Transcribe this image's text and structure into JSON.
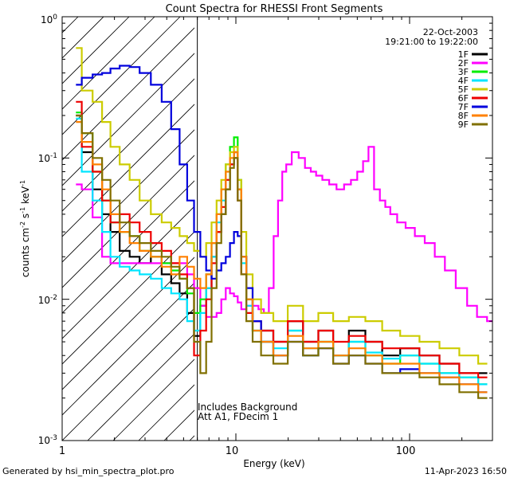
{
  "chart_data": {
    "type": "line",
    "title": "Count Spectra for RHESSI Front Segments",
    "xlabel": "Energy (keV)",
    "ylabel_main": "counts cm",
    "ylabel_sup1": "-2",
    "ylabel_mid": " s",
    "ylabel_sup2": "-1",
    "ylabel_mid2": " keV",
    "ylabel_sup3": "-1",
    "xscale": "log",
    "yscale": "log",
    "xlim": [
      1.0,
      300.0
    ],
    "ylim": [
      0.001,
      1.0
    ],
    "xticks_major": [
      {
        "value": 1,
        "label": "1"
      },
      {
        "value": 10,
        "label": "10"
      },
      {
        "value": 100,
        "label": "100"
      }
    ],
    "yticks_major": [
      {
        "value": 0.001,
        "base": "10",
        "exp": "-3"
      },
      {
        "value": 0.01,
        "base": "10",
        "exp": "-2"
      },
      {
        "value": 0.1,
        "base": "10",
        "exp": "-1"
      },
      {
        "value": 1,
        "base": "10",
        "exp": "0"
      }
    ],
    "date_label": "22-Oct-2003",
    "time_range": "19:21:00 to 19:22:00",
    "annotation_lines": [
      "Includes Background",
      "Att A1, FDecim 1"
    ],
    "footer_left": "Generated by hsi_min_spectra_plot.pro",
    "footer_right": "11-Apr-2023 16:50",
    "hatch_cutoff_kev": 6.0,
    "legend_position": "top-right",
    "series": [
      {
        "name": "1F",
        "color": "#000000",
        "energy": [
          1.2,
          1.4,
          1.6,
          1.8,
          2.0,
          2.3,
          2.6,
          3.0,
          3.5,
          4.0,
          4.5,
          5.0,
          5.5,
          6.0,
          6.5,
          7.0,
          7.5,
          8.0,
          8.5,
          9.0,
          9.5,
          10.0,
          10.5,
          11.0,
          12.0,
          13.0,
          15.0,
          18.0,
          22.0,
          27.0,
          33.0,
          40.0,
          50.0,
          62.0,
          78.0,
          100.0,
          130.0,
          170.0,
          220.0,
          280.0
        ],
        "counts": [
          0.2,
          0.11,
          0.06,
          0.04,
          0.03,
          0.022,
          0.02,
          0.018,
          0.02,
          0.015,
          0.013,
          0.011,
          0.008,
          0.0055,
          0.009,
          0.012,
          0.02,
          0.03,
          0.04,
          0.06,
          0.09,
          0.11,
          0.06,
          0.02,
          0.01,
          0.007,
          0.006,
          0.005,
          0.007,
          0.005,
          0.006,
          0.004,
          0.006,
          0.005,
          0.004,
          0.0045,
          0.004,
          0.0035,
          0.003,
          0.003
        ]
      },
      {
        "name": "2F",
        "color": "#ff00ff",
        "energy": [
          1.2,
          1.4,
          1.6,
          1.8,
          2.0,
          2.3,
          2.6,
          3.0,
          3.5,
          4.0,
          4.5,
          5.0,
          5.5,
          6.0,
          6.5,
          7.0,
          7.5,
          8.0,
          8.5,
          9.0,
          9.5,
          10.0,
          10.5,
          11.0,
          12.0,
          13.0,
          14.0,
          15.0,
          16.0,
          17.0,
          18.0,
          19.0,
          20.0,
          22.0,
          24.0,
          26.0,
          28.0,
          30.0,
          33.0,
          36.0,
          40.0,
          44.0,
          48.0,
          52.0,
          56.0,
          60.0,
          65.0,
          70.0,
          75.0,
          80.0,
          90.0,
          100.0,
          115.0,
          130.0,
          150.0,
          170.0,
          200.0,
          230.0,
          260.0,
          300.0
        ],
        "counts": [
          0.065,
          0.06,
          0.038,
          0.02,
          0.018,
          0.018,
          0.018,
          0.018,
          0.018,
          0.018,
          0.018,
          0.018,
          0.015,
          0.012,
          0.009,
          0.0075,
          0.0075,
          0.008,
          0.01,
          0.012,
          0.011,
          0.0105,
          0.0095,
          0.0085,
          0.009,
          0.009,
          0.0085,
          0.008,
          0.012,
          0.028,
          0.05,
          0.08,
          0.09,
          0.11,
          0.1,
          0.085,
          0.08,
          0.075,
          0.07,
          0.065,
          0.06,
          0.065,
          0.07,
          0.08,
          0.095,
          0.12,
          0.06,
          0.05,
          0.045,
          0.04,
          0.035,
          0.032,
          0.028,
          0.025,
          0.02,
          0.016,
          0.012,
          0.009,
          0.0075,
          0.007
        ]
      },
      {
        "name": "3F",
        "color": "#00ee00",
        "energy": [
          1.2,
          1.4,
          1.6,
          1.8,
          2.0,
          2.3,
          2.6,
          3.0,
          3.5,
          4.0,
          4.5,
          5.0,
          5.5,
          6.0,
          6.5,
          7.0,
          7.5,
          8.0,
          8.5,
          9.0,
          9.5,
          10.0,
          10.5,
          11.0,
          12.0,
          13.0,
          15.0,
          18.0,
          22.0,
          27.0,
          33.0,
          40.0,
          50.0,
          62.0,
          78.0,
          100.0,
          130.0,
          170.0,
          220.0,
          280.0
        ],
        "counts": [
          0.21,
          0.15,
          0.08,
          0.05,
          0.035,
          0.03,
          0.028,
          0.022,
          0.02,
          0.018,
          0.016,
          0.014,
          0.011,
          0.008,
          0.01,
          0.015,
          0.025,
          0.04,
          0.06,
          0.09,
          0.12,
          0.14,
          0.07,
          0.02,
          0.01,
          0.006,
          0.005,
          0.004,
          0.006,
          0.004,
          0.005,
          0.004,
          0.005,
          0.004,
          0.0035,
          0.004,
          0.0035,
          0.003,
          0.0028,
          0.0025
        ]
      },
      {
        "name": "4F",
        "color": "#00e5ff",
        "energy": [
          1.2,
          1.4,
          1.6,
          1.8,
          2.0,
          2.3,
          2.6,
          3.0,
          3.5,
          4.0,
          4.5,
          5.0,
          5.5,
          6.0,
          6.5,
          7.0,
          7.5,
          8.0,
          8.5,
          9.0,
          9.5,
          10.0,
          10.5,
          11.0,
          12.0,
          13.0,
          15.0,
          18.0,
          22.0,
          27.0,
          33.0,
          40.0,
          50.0,
          62.0,
          78.0,
          100.0,
          130.0,
          170.0,
          220.0,
          280.0
        ],
        "counts": [
          0.19,
          0.08,
          0.05,
          0.03,
          0.02,
          0.017,
          0.016,
          0.015,
          0.014,
          0.012,
          0.011,
          0.01,
          0.007,
          0.006,
          0.008,
          0.012,
          0.02,
          0.035,
          0.05,
          0.07,
          0.09,
          0.1,
          0.05,
          0.018,
          0.009,
          0.006,
          0.005,
          0.0045,
          0.006,
          0.0045,
          0.005,
          0.004,
          0.005,
          0.0042,
          0.0038,
          0.004,
          0.0035,
          0.003,
          0.0028,
          0.0025
        ]
      },
      {
        "name": "5F",
        "color": "#cccc00",
        "energy": [
          1.2,
          1.4,
          1.6,
          1.8,
          2.0,
          2.3,
          2.6,
          3.0,
          3.5,
          4.0,
          4.5,
          5.0,
          5.5,
          6.0,
          6.5,
          7.0,
          7.5,
          8.0,
          8.5,
          9.0,
          9.5,
          10.0,
          10.5,
          11.0,
          12.0,
          13.0,
          15.0,
          18.0,
          22.0,
          27.0,
          33.0,
          40.0,
          50.0,
          62.0,
          78.0,
          100.0,
          130.0,
          170.0,
          220.0,
          280.0
        ],
        "counts": [
          0.6,
          0.3,
          0.25,
          0.18,
          0.12,
          0.09,
          0.07,
          0.05,
          0.04,
          0.035,
          0.032,
          0.028,
          0.025,
          0.022,
          0.02,
          0.025,
          0.035,
          0.05,
          0.07,
          0.09,
          0.11,
          0.12,
          0.07,
          0.03,
          0.015,
          0.01,
          0.008,
          0.007,
          0.009,
          0.007,
          0.008,
          0.007,
          0.0075,
          0.007,
          0.006,
          0.0055,
          0.005,
          0.0045,
          0.004,
          0.0035
        ]
      },
      {
        "name": "6F",
        "color": "#ee0000",
        "energy": [
          1.2,
          1.4,
          1.6,
          1.8,
          2.0,
          2.3,
          2.6,
          3.0,
          3.5,
          4.0,
          4.5,
          5.0,
          5.5,
          6.0,
          6.5,
          7.0,
          7.5,
          8.0,
          8.5,
          9.0,
          9.5,
          10.0,
          10.5,
          11.0,
          12.0,
          13.0,
          15.0,
          18.0,
          22.0,
          27.0,
          33.0,
          40.0,
          50.0,
          62.0,
          78.0,
          100.0,
          130.0,
          170.0,
          220.0,
          280.0
        ],
        "counts": [
          0.25,
          0.12,
          0.08,
          0.05,
          0.035,
          0.04,
          0.035,
          0.03,
          0.025,
          0.022,
          0.018,
          0.015,
          0.012,
          0.004,
          0.006,
          0.01,
          0.018,
          0.03,
          0.045,
          0.07,
          0.09,
          0.1,
          0.05,
          0.015,
          0.008,
          0.007,
          0.006,
          0.005,
          0.007,
          0.005,
          0.006,
          0.005,
          0.0055,
          0.005,
          0.0045,
          0.0045,
          0.004,
          0.0035,
          0.003,
          0.0028
        ]
      },
      {
        "name": "7F",
        "color": "#0000dd",
        "energy": [
          1.2,
          1.4,
          1.6,
          1.8,
          2.0,
          2.3,
          2.6,
          3.0,
          3.5,
          4.0,
          4.5,
          5.0,
          5.5,
          6.0,
          6.5,
          7.0,
          7.5,
          8.0,
          8.5,
          9.0,
          9.5,
          10.0,
          10.5,
          11.0,
          12.0,
          13.0,
          15.0,
          18.0,
          22.0,
          27.0,
          33.0,
          40.0,
          50.0,
          62.0,
          78.0,
          100.0,
          130.0,
          170.0,
          220.0,
          280.0
        ],
        "counts": [
          0.33,
          0.37,
          0.39,
          0.4,
          0.43,
          0.45,
          0.44,
          0.4,
          0.33,
          0.25,
          0.16,
          0.09,
          0.05,
          0.03,
          0.02,
          0.016,
          0.014,
          0.016,
          0.018,
          0.02,
          0.025,
          0.03,
          0.028,
          0.02,
          0.012,
          0.007,
          0.005,
          0.004,
          0.005,
          0.004,
          0.0045,
          0.0035,
          0.004,
          0.0035,
          0.003,
          0.0032,
          0.003,
          0.0028,
          0.0025,
          0.0022
        ]
      },
      {
        "name": "8F",
        "color": "#ff8000",
        "energy": [
          1.2,
          1.4,
          1.6,
          1.8,
          2.0,
          2.3,
          2.6,
          3.0,
          3.5,
          4.0,
          4.5,
          5.0,
          5.5,
          6.0,
          6.5,
          7.0,
          7.5,
          8.0,
          8.5,
          9.0,
          9.5,
          10.0,
          10.5,
          11.0,
          12.0,
          13.0,
          15.0,
          18.0,
          22.0,
          27.0,
          33.0,
          40.0,
          50.0,
          62.0,
          78.0,
          100.0,
          130.0,
          170.0,
          220.0,
          280.0
        ],
        "counts": [
          0.18,
          0.13,
          0.09,
          0.06,
          0.04,
          0.03,
          0.025,
          0.022,
          0.02,
          0.017,
          0.015,
          0.02,
          0.017,
          0.014,
          0.012,
          0.015,
          0.025,
          0.04,
          0.06,
          0.08,
          0.1,
          0.11,
          0.06,
          0.02,
          0.01,
          0.006,
          0.005,
          0.004,
          0.0055,
          0.0045,
          0.005,
          0.004,
          0.0045,
          0.004,
          0.0035,
          0.0035,
          0.003,
          0.0028,
          0.0025,
          0.0022
        ]
      },
      {
        "name": "9F",
        "color": "#807000",
        "energy": [
          1.2,
          1.4,
          1.6,
          1.8,
          2.0,
          2.3,
          2.6,
          3.0,
          3.5,
          4.0,
          4.5,
          5.0,
          5.5,
          6.0,
          6.5,
          7.0,
          7.5,
          8.0,
          8.5,
          9.0,
          9.5,
          10.0,
          10.5,
          11.0,
          12.0,
          13.0,
          15.0,
          18.0,
          22.0,
          27.0,
          33.0,
          40.0,
          50.0,
          62.0,
          78.0,
          100.0,
          130.0,
          170.0,
          220.0,
          280.0
        ],
        "counts": [
          0.2,
          0.15,
          0.1,
          0.07,
          0.05,
          0.035,
          0.028,
          0.025,
          0.022,
          0.02,
          0.017,
          0.014,
          0.012,
          0.005,
          0.003,
          0.005,
          0.012,
          0.025,
          0.04,
          0.06,
          0.085,
          0.1,
          0.05,
          0.015,
          0.007,
          0.005,
          0.004,
          0.0035,
          0.005,
          0.004,
          0.0045,
          0.0035,
          0.004,
          0.0035,
          0.003,
          0.003,
          0.0028,
          0.0025,
          0.0022,
          0.002
        ]
      }
    ]
  }
}
